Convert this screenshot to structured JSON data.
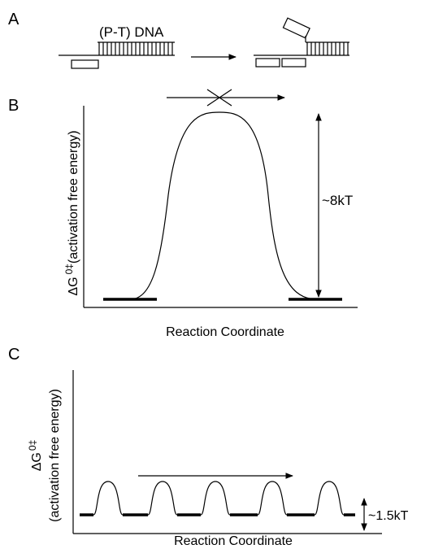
{
  "panels": {
    "a": {
      "label": "A",
      "dna_label": "(P-T) DNA"
    },
    "b": {
      "label": "B",
      "y_axis": {
        "symbol": "ΔG",
        "superscript": "0‡",
        "description": "(activation free energy)"
      },
      "x_axis": "Reaction Coordinate",
      "barrier": "~8kT"
    },
    "c": {
      "label": "C",
      "y_axis": {
        "symbol": "ΔG",
        "superscript": "0‡",
        "description": "(activation free energy)"
      },
      "x_axis": "Reaction Coordinate",
      "barrier": "~1.5kT"
    }
  }
}
